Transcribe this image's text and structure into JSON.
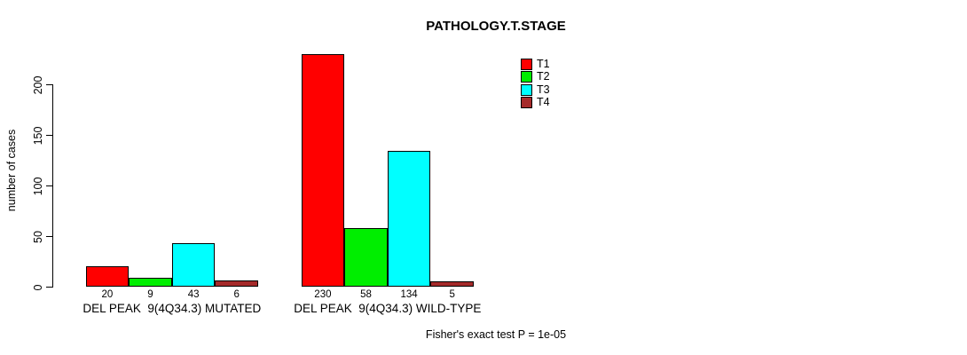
{
  "chart_data": {
    "type": "bar",
    "grouped": true,
    "title": "PATHOLOGY.T.STAGE",
    "ylabel": "number of cases",
    "xlabel": "",
    "yticks": [
      0,
      50,
      100,
      150,
      200
    ],
    "ylim": [
      0,
      232
    ],
    "grid": false,
    "legend_position": "top-right",
    "categories": [
      "DEL PEAK  9(4Q34.3) MUTATED",
      "DEL PEAK  9(4Q34.3) WILD-TYPE"
    ],
    "series": [
      {
        "name": "T1",
        "color": "#ff0000",
        "values": [
          20,
          230
        ]
      },
      {
        "name": "T2",
        "color": "#00ee00",
        "values": [
          9,
          58
        ]
      },
      {
        "name": "T3",
        "color": "#00ffff",
        "values": [
          43,
          134
        ]
      },
      {
        "name": "T4",
        "color": "#a52a2a",
        "values": [
          6,
          5
        ]
      }
    ],
    "bar_value_labels": {
      "DEL PEAK  9(4Q34.3) MUTATED": [
        "20",
        "9",
        "43",
        "6"
      ],
      "DEL PEAK  9(4Q34.3) WILD-TYPE": [
        "230",
        "58",
        "134",
        "5"
      ]
    },
    "annotation": "Fisher's exact test P = 1e-05"
  }
}
